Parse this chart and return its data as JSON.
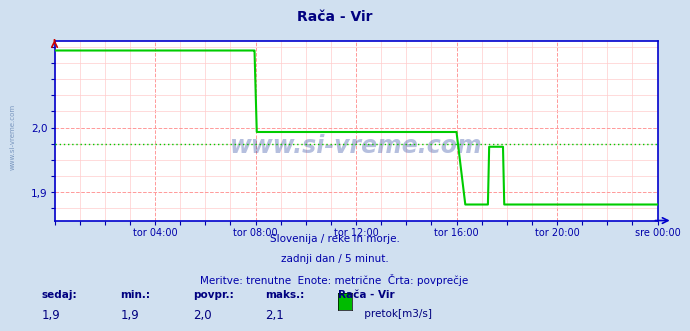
{
  "title": "Rača - Vir",
  "title_color": "#000080",
  "bg_color": "#d0e0f0",
  "plot_bg_color": "#ffffff",
  "line_color": "#00cc00",
  "avg_line_color": "#00cc00",
  "grid_color_major": "#ff9999",
  "grid_color_minor": "#ffcccc",
  "axis_color": "#0000cc",
  "tick_color": "#0000aa",
  "ylim": [
    1.855,
    2.135
  ],
  "yticks": [
    1.9,
    2.0
  ],
  "avg_value": 1.975,
  "subtitle_line1": "Slovenija / reke in morje.",
  "subtitle_line2": "zadnji dan / 5 minut.",
  "subtitle_line3": "Meritve: trenutne  Enote: metrične  Črta: povprečje",
  "subtitle_color": "#0000aa",
  "footer_color": "#000080",
  "watermark": "www.si-vreme.com",
  "watermark_color": "#1a3a9a",
  "legend_label": " pretok[m3/s]",
  "legend_color": "#00bb00",
  "stats_headers": [
    "sedaj:",
    "min.:",
    "povpr.:",
    "maks.:",
    "Rača - Vir"
  ],
  "stats_values": [
    "1,9",
    "1,9",
    "2,0",
    "2,1"
  ],
  "x_total_hours": 24,
  "x_tick_labels": [
    "tor 04:00",
    "tor 08:00",
    "tor 12:00",
    "tor 16:00",
    "tor 20:00",
    "sre 00:00"
  ],
  "x_tick_positions": [
    4,
    8,
    12,
    16,
    20,
    24
  ],
  "flow_data": [
    [
      0,
      2.12
    ],
    [
      0.01,
      2.12
    ],
    [
      7.95,
      2.12
    ],
    [
      7.96,
      2.12
    ],
    [
      8.05,
      1.993
    ],
    [
      15.95,
      1.993
    ],
    [
      16.0,
      1.993
    ],
    [
      16.35,
      1.88
    ],
    [
      17.25,
      1.88
    ],
    [
      17.3,
      1.97
    ],
    [
      17.85,
      1.97
    ],
    [
      17.9,
      1.88
    ],
    [
      24,
      1.88
    ]
  ]
}
